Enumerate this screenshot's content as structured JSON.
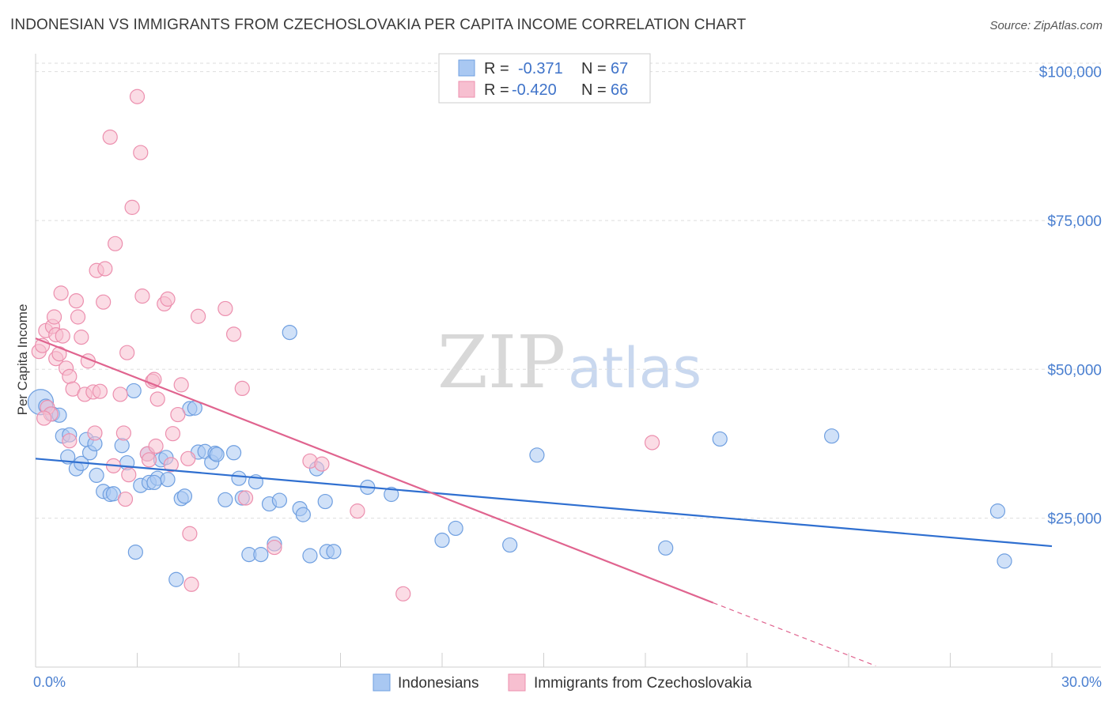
{
  "title": "INDONESIAN VS IMMIGRANTS FROM CZECHOSLOVAKIA PER CAPITA INCOME CORRELATION CHART",
  "source": "Source: ZipAtlas.com",
  "watermark": {
    "zip": "ZIP",
    "atlas": "atlas"
  },
  "colors": {
    "blue_fill": "#a9c8f2",
    "blue_stroke": "#6f9fe0",
    "blue_line": "#2f6fd0",
    "pink_fill": "#f7bfd0",
    "pink_stroke": "#ec8fae",
    "pink_line": "#e0648f",
    "grid": "#dddddd",
    "axis_text": "#4a7fd0"
  },
  "legend": {
    "rows": [
      {
        "r_label": "R =",
        "r_value": "-0.371",
        "n_label": "N =",
        "n_value": "67"
      },
      {
        "r_label": "R =",
        "r_value": "-0.420",
        "n_label": "N =",
        "n_value": "66"
      }
    ]
  },
  "chart_data": {
    "type": "scatter",
    "title": "INDONESIAN VS IMMIGRANTS FROM CZECHOSLOVAKIA PER CAPITA INCOME CORRELATION CHART",
    "xlabel": "",
    "ylabel": "Per Capita Income",
    "xlim": [
      0,
      30
    ],
    "ylim": [
      0,
      103000
    ],
    "x_tick_labels": [
      "0.0%",
      "30.0%"
    ],
    "y_ticks": [
      25000,
      50000,
      75000,
      100000
    ],
    "y_tick_labels": [
      "$25,000",
      "$50,000",
      "$75,000",
      "$100,000"
    ],
    "x_minor_ticks": [
      3,
      6,
      9,
      12,
      15,
      18,
      21,
      24,
      27
    ],
    "legend_position": "top-center",
    "series": [
      {
        "name": "Indonesians",
        "color": "blue",
        "r": -0.371,
        "n": 67,
        "trend": {
          "x0": 0,
          "y0": 35000,
          "x1": 30,
          "y1": 20300
        },
        "points": [
          [
            0.15,
            44500
          ],
          [
            0.3,
            43800
          ],
          [
            0.5,
            42500
          ],
          [
            0.7,
            42300
          ],
          [
            0.8,
            38800
          ],
          [
            1.0,
            39000
          ],
          [
            0.95,
            35300
          ],
          [
            1.2,
            33300
          ],
          [
            1.35,
            34200
          ],
          [
            1.5,
            38200
          ],
          [
            1.6,
            36000
          ],
          [
            1.75,
            37500
          ],
          [
            1.8,
            32200
          ],
          [
            2.0,
            29500
          ],
          [
            2.2,
            29000
          ],
          [
            2.3,
            29100
          ],
          [
            2.55,
            37200
          ],
          [
            2.7,
            34300
          ],
          [
            2.9,
            46400
          ],
          [
            2.95,
            19300
          ],
          [
            3.1,
            30500
          ],
          [
            3.3,
            35800
          ],
          [
            3.35,
            31000
          ],
          [
            3.6,
            31700
          ],
          [
            3.7,
            34800
          ],
          [
            3.85,
            35200
          ],
          [
            3.9,
            31500
          ],
          [
            4.15,
            14700
          ],
          [
            4.3,
            28300
          ],
          [
            4.4,
            28700
          ],
          [
            4.55,
            43400
          ],
          [
            4.7,
            43500
          ],
          [
            4.8,
            36100
          ],
          [
            5.0,
            36200
          ],
          [
            5.2,
            34400
          ],
          [
            5.3,
            35900
          ],
          [
            5.35,
            35700
          ],
          [
            5.6,
            28100
          ],
          [
            5.85,
            36000
          ],
          [
            6.0,
            31700
          ],
          [
            6.1,
            28400
          ],
          [
            6.3,
            18900
          ],
          [
            6.5,
            31100
          ],
          [
            6.65,
            18900
          ],
          [
            6.9,
            27400
          ],
          [
            7.05,
            20700
          ],
          [
            7.2,
            28000
          ],
          [
            7.5,
            56200
          ],
          [
            7.8,
            26600
          ],
          [
            7.9,
            25600
          ],
          [
            8.1,
            18700
          ],
          [
            8.3,
            33300
          ],
          [
            8.55,
            27800
          ],
          [
            8.6,
            19400
          ],
          [
            8.8,
            19400
          ],
          [
            9.8,
            30200
          ],
          [
            10.5,
            29000
          ],
          [
            12.0,
            21300
          ],
          [
            12.4,
            23300
          ],
          [
            14.0,
            20500
          ],
          [
            14.8,
            35600
          ],
          [
            18.6,
            20000
          ],
          [
            20.2,
            38300
          ],
          [
            23.5,
            38800
          ],
          [
            28.4,
            26200
          ],
          [
            28.6,
            17800
          ],
          [
            3.5,
            31000
          ]
        ]
      },
      {
        "name": "Immigrants from Czechoslovakia",
        "color": "pink",
        "r": -0.42,
        "n": 66,
        "trend": {
          "x0": 0,
          "y0": 55200,
          "x1": 20,
          "y1": 10800
        },
        "trend_dashed": {
          "x0": 20,
          "y0": 10800,
          "x1": 24.8,
          "y1": 200
        },
        "points": [
          [
            0.1,
            53000
          ],
          [
            0.2,
            54000
          ],
          [
            0.3,
            56500
          ],
          [
            0.35,
            43600
          ],
          [
            0.45,
            42500
          ],
          [
            0.5,
            57200
          ],
          [
            0.55,
            58800
          ],
          [
            0.6,
            51800
          ],
          [
            0.6,
            55800
          ],
          [
            0.7,
            52600
          ],
          [
            0.75,
            62800
          ],
          [
            0.8,
            55600
          ],
          [
            0.9,
            50200
          ],
          [
            1.0,
            48800
          ],
          [
            1.0,
            38000
          ],
          [
            1.1,
            46700
          ],
          [
            1.2,
            61500
          ],
          [
            1.25,
            58800
          ],
          [
            1.35,
            55400
          ],
          [
            1.45,
            45800
          ],
          [
            1.55,
            51400
          ],
          [
            1.7,
            46200
          ],
          [
            1.75,
            39300
          ],
          [
            1.8,
            66600
          ],
          [
            1.9,
            46300
          ],
          [
            2.0,
            61300
          ],
          [
            2.05,
            66900
          ],
          [
            2.2,
            89000
          ],
          [
            2.3,
            33800
          ],
          [
            2.35,
            71100
          ],
          [
            2.5,
            45800
          ],
          [
            2.6,
            39300
          ],
          [
            2.65,
            28200
          ],
          [
            2.7,
            52800
          ],
          [
            2.75,
            32300
          ],
          [
            2.85,
            77200
          ],
          [
            3.0,
            95800
          ],
          [
            3.1,
            86400
          ],
          [
            3.15,
            62300
          ],
          [
            3.3,
            35800
          ],
          [
            3.35,
            34800
          ],
          [
            3.45,
            48000
          ],
          [
            3.5,
            48300
          ],
          [
            3.55,
            37100
          ],
          [
            3.6,
            45000
          ],
          [
            3.8,
            61000
          ],
          [
            3.9,
            61800
          ],
          [
            4.05,
            39200
          ],
          [
            4.2,
            42400
          ],
          [
            4.3,
            47400
          ],
          [
            4.5,
            35000
          ],
          [
            4.55,
            22400
          ],
          [
            4.6,
            13900
          ],
          [
            4.8,
            58900
          ],
          [
            5.6,
            60200
          ],
          [
            5.85,
            55900
          ],
          [
            6.1,
            46800
          ],
          [
            6.2,
            28400
          ],
          [
            7.05,
            20100
          ],
          [
            8.1,
            34600
          ],
          [
            8.45,
            34100
          ],
          [
            9.5,
            26200
          ],
          [
            10.85,
            12300
          ],
          [
            18.2,
            37700
          ],
          [
            0.25,
            41800
          ],
          [
            4.0,
            34000
          ]
        ]
      }
    ]
  },
  "bottom_legend": {
    "items": [
      {
        "label": "Indonesians"
      },
      {
        "label": "Immigrants from Czechoslovakia"
      }
    ]
  }
}
